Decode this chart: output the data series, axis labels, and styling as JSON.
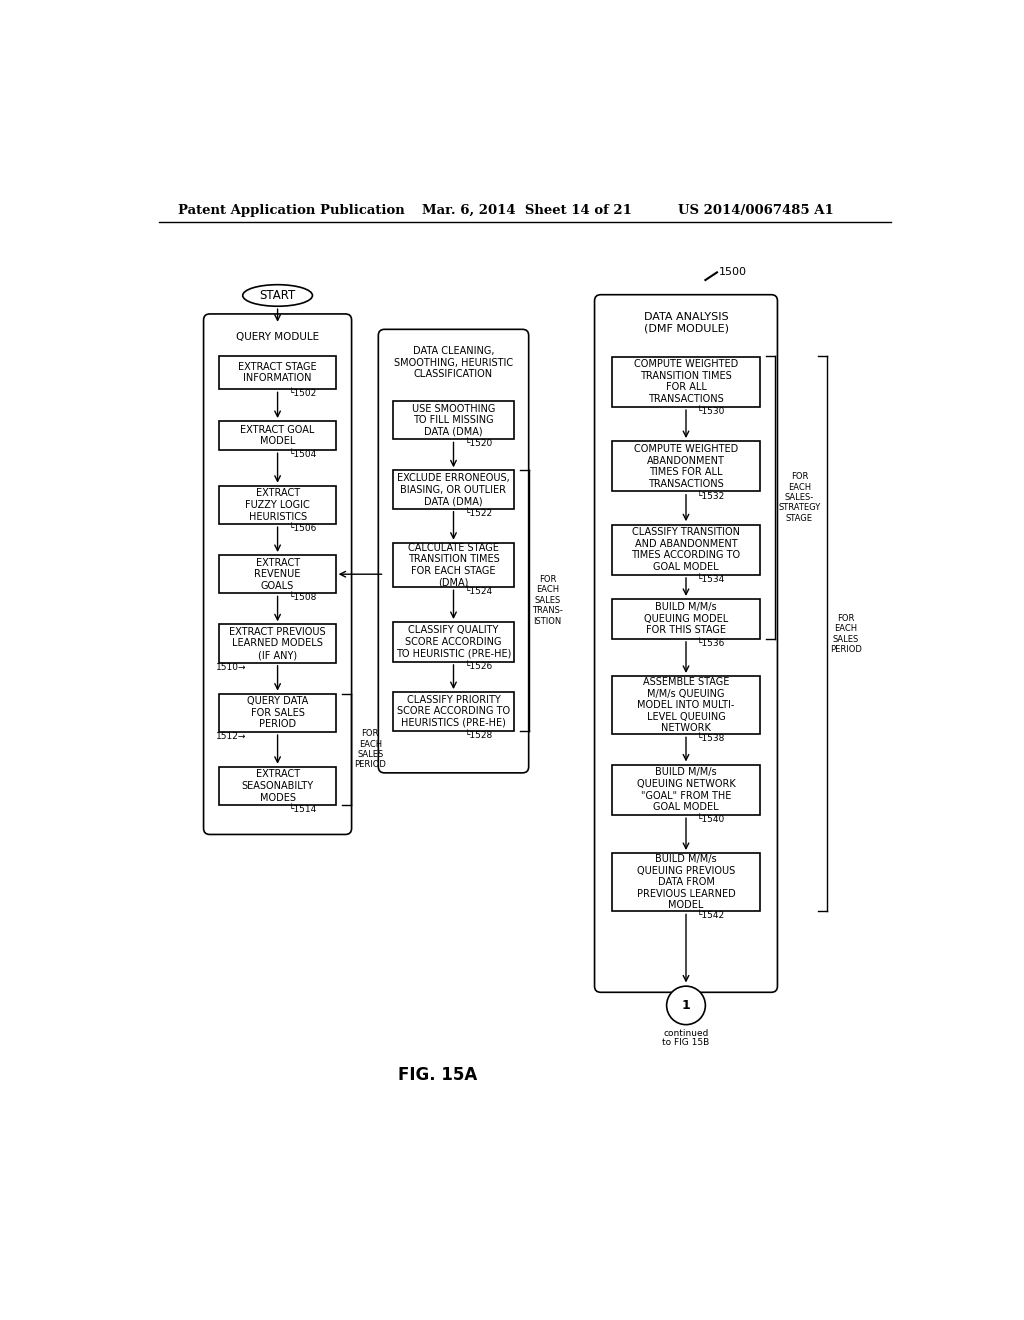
{
  "header_left": "Patent Application Publication",
  "header_mid": "Mar. 6, 2014  Sheet 14 of 21",
  "header_right": "US 2014/0067485 A1",
  "figure_label": "FIG. 15A",
  "bg_color": "#ffffff"
}
